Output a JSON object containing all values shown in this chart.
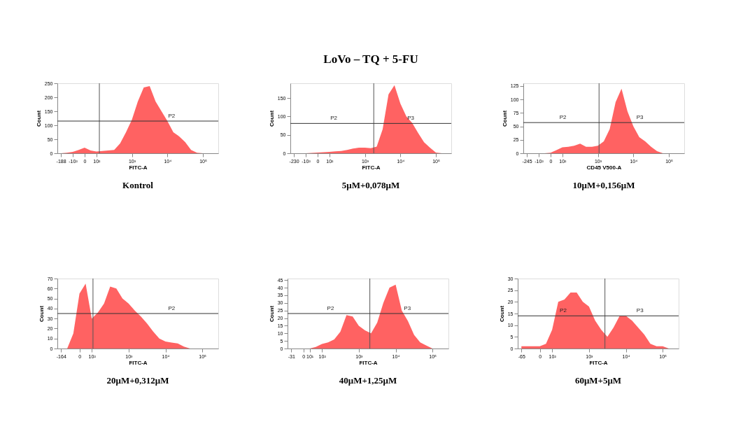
{
  "chart_data": [
    {
      "type": "area",
      "xlabel": "FITC-A",
      "ylabel": "Count",
      "color": "#ff5a5a",
      "categories": [
        "-188",
        null,
        "-10²",
        null,
        "0",
        null,
        "10²",
        null,
        null,
        null,
        null,
        null,
        "10³",
        null,
        null,
        null,
        null,
        null,
        "10⁴",
        null,
        null,
        null,
        null,
        null,
        "10⁵",
        null,
        null
      ],
      "values": [
        0,
        2,
        5,
        12,
        20,
        10,
        6,
        8,
        10,
        12,
        35,
        75,
        120,
        185,
        235,
        240,
        185,
        150,
        115,
        75,
        60,
        40,
        12,
        2,
        0,
        0,
        0
      ],
      "ylim": [
        0,
        250
      ],
      "yticks": [
        0,
        50,
        100,
        150,
        200,
        250
      ],
      "ref_lines": [
        {
          "axis": "y",
          "value": 115,
          "label": "P2"
        }
      ],
      "annotations": [
        "Kontrol"
      ]
    },
    {
      "type": "area",
      "title": "LoVo – TQ + 5-FU",
      "xlabel": "FITC-A",
      "ylabel": "Count",
      "color": "#ff5a5a",
      "categories": [
        "-230",
        null,
        "-10²",
        null,
        "0",
        null,
        "10²",
        null,
        null,
        null,
        null,
        null,
        "10³",
        null,
        null,
        null,
        null,
        null,
        "10⁴",
        null,
        null,
        null,
        null,
        null,
        "10⁵",
        null,
        null
      ],
      "values": [
        0,
        0,
        0,
        1,
        2,
        3,
        4,
        5,
        6,
        9,
        13,
        15,
        15,
        14,
        18,
        65,
        160,
        185,
        135,
        100,
        82,
        55,
        30,
        15,
        2,
        0,
        0
      ],
      "ylim": [
        0,
        190
      ],
      "yticks": [
        0,
        50,
        100,
        150
      ],
      "ref_lines": [
        {
          "axis": "y",
          "value": 81,
          "label": "P2"
        }
      ],
      "annotations": [
        "5μM+0,078μM",
        "P3"
      ]
    },
    {
      "type": "area",
      "xlabel": "CD45 V500-A",
      "ylabel": "Count",
      "color": "#ff5a5a",
      "categories": [
        "-245",
        null,
        "-10²",
        null,
        "0",
        null,
        "10²",
        null,
        null,
        null,
        null,
        null,
        "10³",
        null,
        null,
        null,
        null,
        null,
        "10⁴",
        null,
        null,
        null,
        null,
        null,
        "10⁵",
        null,
        null
      ],
      "values": [
        0,
        0,
        0,
        0,
        1,
        6,
        11,
        12,
        14,
        18,
        12,
        12,
        14,
        22,
        45,
        95,
        120,
        78,
        50,
        30,
        22,
        12,
        4,
        0,
        0,
        0,
        0
      ],
      "ylim": [
        0,
        130
      ],
      "yticks": [
        0,
        25,
        50,
        75,
        100,
        125
      ],
      "ref_lines": [
        {
          "axis": "y",
          "value": 57,
          "label": "P2"
        }
      ],
      "annotations": [
        "10μM+0,156μM",
        "P3"
      ]
    },
    {
      "type": "area",
      "xlabel": "FITC-A",
      "ylabel": "Count",
      "color": "#ff5a5a",
      "categories": [
        "-164",
        null,
        null,
        "0",
        null,
        "10²",
        null,
        null,
        null,
        null,
        null,
        "10³",
        null,
        null,
        null,
        null,
        null,
        "10⁴",
        null,
        null,
        null,
        null,
        null,
        "10⁵",
        null,
        null
      ],
      "values": [
        0,
        0,
        15,
        55,
        65,
        30,
        36,
        45,
        62,
        60,
        50,
        45,
        38,
        32,
        25,
        17,
        10,
        7,
        6,
        5,
        2,
        0,
        0,
        0,
        0,
        0
      ],
      "ylim": [
        0,
        70
      ],
      "yticks": [
        0,
        10,
        20,
        30,
        40,
        50,
        60,
        70
      ],
      "ref_lines": [
        {
          "axis": "y",
          "value": 35,
          "label": "P2"
        }
      ],
      "annotations": [
        "20μM+0,312μM"
      ]
    },
    {
      "type": "area",
      "xlabel": "FITC-A",
      "ylabel": "Count",
      "color": "#ff5a5a",
      "categories": [
        "-31",
        null,
        "0",
        "10¹",
        null,
        "10²",
        null,
        null,
        null,
        null,
        null,
        "10³",
        null,
        null,
        null,
        null,
        null,
        "10⁴",
        null,
        null,
        null,
        null,
        null,
        "10⁵",
        null,
        null
      ],
      "values": [
        0,
        0,
        0,
        0,
        1,
        3,
        4,
        6,
        11,
        22,
        21,
        15,
        12,
        10,
        17,
        30,
        40,
        42,
        25,
        18,
        9,
        4,
        2,
        0,
        0,
        0
      ],
      "ylim": [
        0,
        46
      ],
      "yticks": [
        0,
        5,
        10,
        15,
        20,
        25,
        30,
        35,
        40,
        45
      ],
      "ref_lines": [
        {
          "axis": "y",
          "value": 23,
          "label": "P2"
        }
      ],
      "annotations": [
        "40μM+1,25μM",
        "P3"
      ]
    },
    {
      "type": "area",
      "xlabel": "FITC-A",
      "ylabel": "Count",
      "color": "#ff5a5a",
      "categories": [
        "-65",
        null,
        null,
        "0",
        null,
        "10²",
        null,
        null,
        null,
        null,
        null,
        "10³",
        null,
        null,
        null,
        null,
        null,
        "10⁴",
        null,
        null,
        null,
        null,
        null,
        "10⁵",
        null,
        null
      ],
      "values": [
        1,
        1,
        1,
        1,
        2,
        8,
        20,
        21,
        24,
        24,
        20,
        18,
        12,
        8,
        5,
        9,
        14,
        14,
        12,
        9,
        6,
        2,
        1,
        1,
        0,
        0
      ],
      "ylim": [
        0,
        30
      ],
      "yticks": [
        0,
        5,
        10,
        15,
        20,
        25,
        30
      ],
      "ref_lines": [
        {
          "axis": "y",
          "value": 14,
          "label": "P2"
        }
      ],
      "annotations": [
        "60μM+5μM",
        "P3"
      ]
    }
  ]
}
